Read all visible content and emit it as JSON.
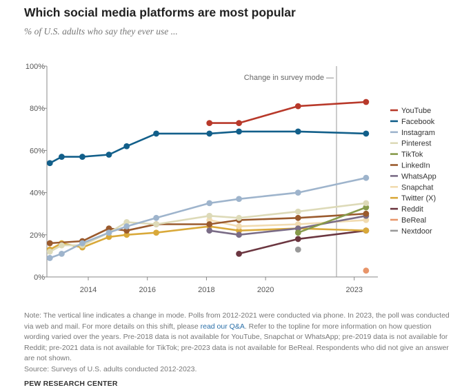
{
  "title": "Which social media platforms are most popular",
  "subtitle": "% of U.S. adults who say they ever use ...",
  "annotation": "Change in survey mode",
  "note": {
    "part1": "Note: The vertical line indicates a change in mode. Polls from 2012-2021 were conducted via phone. In 2023, the poll was conducted via web and mail. For more details on this shift, please ",
    "link": "read our Q&A",
    "part2": ". Refer to the topline for more information on how question wording varied over the years. Pre-2018 data is not available for YouTube, Snapchat or WhatsApp; pre-2019 data is not available for Reddit; pre-2021 data is not available for TikTok; pre-2023 data is not available for BeReal. Respondents who did not give an answer are not shown.",
    "source": "Source: Surveys of U.S. adults conducted 2012-2023."
  },
  "brand": "PEW RESEARCH CENTER",
  "chart_data": {
    "type": "line",
    "xlim": [
      2012.6,
      2023.8
    ],
    "ylim": [
      0,
      100
    ],
    "x_ticks": [
      2014,
      2016,
      2018,
      2020,
      2023
    ],
    "x_tick_labels": [
      "2014",
      "2016",
      "2018",
      "2020",
      "2023"
    ],
    "y_ticks": [
      0,
      20,
      40,
      60,
      80,
      100
    ],
    "y_tick_labels": [
      "0%",
      "20%",
      "40%",
      "60%",
      "80%",
      "100%"
    ],
    "grid": false,
    "mode_change_x": 2022.4,
    "legend_position": "right",
    "series": [
      {
        "name": "YouTube",
        "color": "#b8392a",
        "points": [
          [
            2018.1,
            73
          ],
          [
            2019.1,
            73
          ],
          [
            2021.1,
            81
          ],
          [
            2023.4,
            83
          ]
        ]
      },
      {
        "name": "Facebook",
        "color": "#125f8a",
        "points": [
          [
            2012.7,
            54
          ],
          [
            2013.1,
            57
          ],
          [
            2013.8,
            57
          ],
          [
            2014.7,
            58
          ],
          [
            2015.3,
            62
          ],
          [
            2016.3,
            68
          ],
          [
            2018.1,
            68
          ],
          [
            2019.1,
            69
          ],
          [
            2021.1,
            69
          ],
          [
            2023.4,
            68
          ]
        ]
      },
      {
        "name": "Instagram",
        "color": "#9eb4cc",
        "points": [
          [
            2012.7,
            9
          ],
          [
            2013.1,
            11
          ],
          [
            2013.8,
            16
          ],
          [
            2014.7,
            21
          ],
          [
            2015.3,
            24
          ],
          [
            2016.3,
            28
          ],
          [
            2018.1,
            35
          ],
          [
            2019.1,
            37
          ],
          [
            2021.1,
            40
          ],
          [
            2023.4,
            47
          ]
        ]
      },
      {
        "name": "Pinterest",
        "color": "#dddab8",
        "points": [
          [
            2012.7,
            12
          ],
          [
            2013.1,
            15
          ],
          [
            2013.8,
            15
          ],
          [
            2014.7,
            21
          ],
          [
            2015.3,
            26
          ],
          [
            2016.3,
            25
          ],
          [
            2018.1,
            29
          ],
          [
            2019.1,
            28
          ],
          [
            2021.1,
            31
          ],
          [
            2023.4,
            35
          ]
        ]
      },
      {
        "name": "TikTok",
        "color": "#879a4a",
        "points": [
          [
            2021.1,
            21
          ],
          [
            2023.4,
            33
          ]
        ]
      },
      {
        "name": "LinkedIn",
        "color": "#9a5a2d",
        "points": [
          [
            2012.7,
            16
          ],
          [
            2013.8,
            17
          ],
          [
            2014.7,
            23
          ],
          [
            2015.3,
            22
          ],
          [
            2016.3,
            25
          ],
          [
            2018.1,
            25
          ],
          [
            2019.1,
            27
          ],
          [
            2021.1,
            28
          ],
          [
            2023.4,
            30
          ]
        ]
      },
      {
        "name": "WhatsApp",
        "color": "#7a6c86",
        "points": [
          [
            2018.1,
            22
          ],
          [
            2019.1,
            20
          ],
          [
            2021.1,
            23
          ],
          [
            2023.4,
            29
          ]
        ]
      },
      {
        "name": "Snapchat",
        "color": "#f1dbb0",
        "points": [
          [
            2018.1,
            27
          ],
          [
            2019.1,
            24
          ],
          [
            2021.1,
            25
          ],
          [
            2023.4,
            27
          ]
        ]
      },
      {
        "name": "Twitter (X)",
        "color": "#d9a93a",
        "points": [
          [
            2012.7,
            13
          ],
          [
            2013.1,
            16
          ],
          [
            2013.8,
            14
          ],
          [
            2014.7,
            19
          ],
          [
            2015.3,
            20
          ],
          [
            2016.3,
            21
          ],
          [
            2018.1,
            24
          ],
          [
            2019.1,
            22
          ],
          [
            2021.1,
            23
          ],
          [
            2023.4,
            22
          ]
        ]
      },
      {
        "name": "Reddit",
        "color": "#6b3640",
        "points": [
          [
            2019.1,
            11
          ],
          [
            2021.1,
            18
          ],
          [
            2023.4,
            22
          ]
        ]
      },
      {
        "name": "BeReal",
        "color": "#e8956a",
        "points": [
          [
            2023.4,
            3
          ]
        ]
      },
      {
        "name": "Nextdoor",
        "color": "#999999",
        "points": [
          [
            2021.1,
            13
          ]
        ]
      }
    ]
  }
}
